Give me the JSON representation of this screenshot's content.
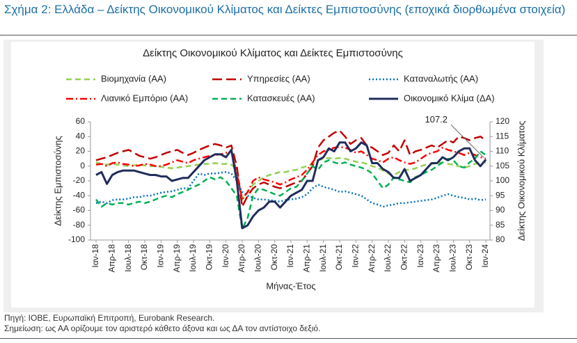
{
  "header": {
    "title": "Σχήμα 2: Ελλάδα – Δείκτης Οικονομικού Κλίματος και Δείκτες Εμπιστοσύνης (εποχικά διορθωμένα στοιχεία)"
  },
  "chart_data": {
    "type": "line",
    "title": "Δείκτης Οικονομικού Κλίματος και Δείκτες Εμπιστοσύνης",
    "x_label": "Μήνας-Έτος",
    "y_label": "Δείκτης Εμπιστοσύνης",
    "y2_label": "Δείκτης Οικονομικού Κλίματος",
    "categories": [
      "Ιαν-18",
      null,
      null,
      "Απρ-18",
      null,
      null,
      "Ιουλ-18",
      null,
      null,
      "Οκτ-18",
      null,
      null,
      "Ιαν-19",
      null,
      null,
      "Απρ-19",
      null,
      null,
      "Ιουλ-19",
      null,
      null,
      "Οκτ-19",
      null,
      null,
      "Ιαν-20",
      null,
      null,
      "Απρ-20",
      null,
      null,
      "Ιουλ-20",
      null,
      null,
      "Οκτ-20",
      null,
      null,
      "Ιαν-21",
      null,
      null,
      "Απρ-21",
      null,
      null,
      "Ιουλ-21",
      null,
      null,
      "Οκτ-21",
      null,
      null,
      "Ιαν-22",
      null,
      null,
      "Απρ-22",
      null,
      null,
      "Ιουλ-22",
      null,
      null,
      "Οκτ-22",
      null,
      null,
      "Ιαν-23",
      null,
      null,
      "Απρ-23",
      null,
      null,
      "Ιουλ-23",
      null,
      null,
      "Οκτ-23",
      null,
      null,
      "Ιαν-24"
    ],
    "ylim": [
      -100,
      60
    ],
    "yticks": [
      -100,
      -80,
      -60,
      -40,
      -20,
      0,
      20,
      40,
      60
    ],
    "y2lim": [
      80,
      120
    ],
    "y2ticks": [
      80,
      85,
      90,
      95,
      100,
      105,
      110,
      115,
      120
    ],
    "legend": "top",
    "series": [
      {
        "name": "Βιομηχανία (ΑΑ)",
        "color": "#92d050",
        "dash": "dash",
        "values": [
          5,
          3,
          2,
          3,
          2,
          1,
          0,
          1,
          2,
          1,
          0,
          0,
          -1,
          -2,
          -3,
          -2,
          -1,
          0,
          1,
          2,
          3,
          3,
          4,
          3,
          3,
          2,
          -5,
          -45,
          -35,
          -25,
          -20,
          -15,
          -12,
          -10,
          -8,
          -8,
          -6,
          -5,
          -2,
          0,
          3,
          8,
          10,
          11,
          10,
          11,
          10,
          8,
          6,
          5,
          3,
          0,
          -2,
          -6,
          -10,
          -12,
          -8,
          -5,
          -5,
          -3,
          0,
          2,
          3,
          4,
          5,
          3,
          2,
          0,
          -2,
          0,
          3,
          5,
          5
        ]
      },
      {
        "name": "Υπηρεσίες (ΑΑ)",
        "color": "#c00000",
        "dash": "longdash",
        "values": [
          8,
          10,
          12,
          15,
          18,
          20,
          22,
          18,
          14,
          12,
          10,
          12,
          15,
          18,
          20,
          22,
          18,
          15,
          18,
          22,
          25,
          28,
          30,
          28,
          25,
          28,
          0,
          -55,
          -40,
          -30,
          -25,
          -22,
          -25,
          -28,
          -30,
          -28,
          -25,
          -22,
          -20,
          -10,
          0,
          25,
          35,
          40,
          45,
          48,
          40,
          30,
          35,
          38,
          28,
          25,
          20,
          15,
          18,
          28,
          20,
          35,
          15,
          20,
          22,
          25,
          28,
          25,
          30,
          35,
          32,
          40,
          38,
          35,
          38,
          40,
          35
        ]
      },
      {
        "name": "Καταναλωτής (ΑΑ)",
        "color": "#0070c0",
        "dash": "dot",
        "values": [
          -50,
          -48,
          -50,
          -46,
          -45,
          -45,
          -44,
          -42,
          -42,
          -40,
          -40,
          -38,
          -36,
          -35,
          -34,
          -32,
          -30,
          -30,
          -20,
          -10,
          -12,
          -10,
          -10,
          -9,
          -8,
          -10,
          -20,
          -35,
          -40,
          -43,
          -45,
          -45,
          -46,
          -47,
          -48,
          -46,
          -45,
          -44,
          -42,
          -38,
          -30,
          -25,
          -28,
          -30,
          -32,
          -35,
          -34,
          -36,
          -38,
          -40,
          -45,
          -50,
          -52,
          -55,
          -53,
          -52,
          -50,
          -50,
          -49,
          -48,
          -47,
          -46,
          -45,
          -43,
          -40,
          -38,
          -40,
          -42,
          -43,
          -45,
          -44,
          -46,
          -45
        ]
      },
      {
        "name": "Λιανικό Εμπόριο (ΑΑ)",
        "color": "#ff0000",
        "dash": "dashdot",
        "values": [
          2,
          3,
          0,
          4,
          5,
          3,
          2,
          0,
          1,
          3,
          2,
          0,
          0,
          2,
          5,
          8,
          6,
          4,
          8,
          10,
          12,
          14,
          15,
          16,
          18,
          20,
          -10,
          -45,
          -35,
          -20,
          -15,
          -18,
          -20,
          -22,
          -25,
          -22,
          -18,
          -15,
          -12,
          -5,
          5,
          15,
          20,
          22,
          25,
          26,
          25,
          22,
          18,
          20,
          15,
          10,
          8,
          5,
          10,
          12,
          8,
          5,
          3,
          5,
          10,
          15,
          18,
          20,
          25,
          22,
          20,
          18,
          15,
          18,
          15,
          12,
          10
        ]
      },
      {
        "name": "Κατασκευές (ΑΑ)",
        "color": "#00b050",
        "dash": "dash",
        "values": [
          -45,
          -55,
          -50,
          -52,
          -50,
          -50,
          -52,
          -50,
          -48,
          -50,
          -48,
          -45,
          -42,
          -40,
          -42,
          -38,
          -35,
          -32,
          -28,
          -25,
          -20,
          -15,
          -18,
          -15,
          -20,
          -30,
          -40,
          -85,
          -70,
          -40,
          -30,
          -32,
          -35,
          -38,
          -40,
          -35,
          -30,
          -28,
          -20,
          -10,
          0,
          -5,
          5,
          8,
          5,
          3,
          5,
          2,
          0,
          -2,
          -5,
          -10,
          -20,
          -30,
          -25,
          -15,
          -18,
          -20,
          -22,
          -15,
          -12,
          -8,
          -5,
          0,
          5,
          10,
          8,
          0,
          -2,
          5,
          10,
          20,
          15
        ]
      },
      {
        "name": "Οικονομικό Κλίμα (ΔΑ)",
        "color": "#1f2d5c",
        "dash": "solid",
        "axis": "y2",
        "values": [
          102,
          103,
          99,
          102,
          103,
          103.5,
          103.5,
          103.5,
          103,
          102.5,
          102,
          102,
          101.5,
          101.5,
          100,
          100.5,
          101,
          101,
          103,
          105,
          107,
          108,
          109,
          109,
          108,
          110.5,
          100,
          84,
          85,
          88,
          90,
          91,
          93,
          93,
          91,
          93,
          95,
          96,
          97,
          100,
          100,
          107,
          108,
          111,
          110,
          113,
          113,
          110,
          111,
          113,
          112,
          106,
          106,
          104,
          103,
          101,
          101,
          104,
          100,
          101,
          102,
          104,
          106,
          106,
          108,
          107,
          108,
          110,
          111,
          111,
          107,
          105,
          107.2
        ]
      }
    ]
  },
  "footer": {
    "source": "Πηγή: ΙΟΒΕ, Ευρωπαϊκή Επιτροπή, Eurobank Research.",
    "note": "Σημείωση: ως ΑΑ ορίζουμε τον αριστερό κάθετο άξονα και ως ΔΑ τον αντίστοιχο δεξιό."
  }
}
